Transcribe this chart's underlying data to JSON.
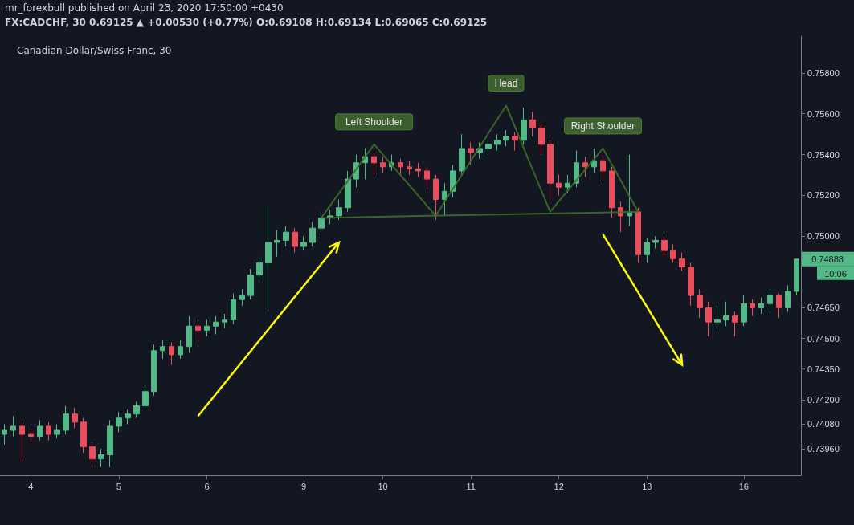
{
  "chart_data": {
    "type": "candlestick",
    "title": "Canadian Dollar/Swiss Franc, 30",
    "subtitle": "FX:CADCHF, 30 0.69125 ▲ +0.00530 (+0.77%) O:0.69108 H:0.69134 L:0.69065 C:0.69125",
    "annotations": [
      "mr_forexbull published on April 23, 2020 17:50:00 +0430",
      {
        "text": "Left Shoulder",
        "y": 0.7545
      },
      {
        "text": "Head",
        "y": 0.7564
      },
      {
        "text": "Right Shoulder",
        "y": 0.7543
      },
      "0.74888",
      "10:06"
    ],
    "categories": [
      null,
      null,
      null,
      "4",
      null,
      null,
      null,
      null,
      null,
      null,
      null,
      null,
      null,
      "5",
      null,
      null,
      null,
      null,
      null,
      null,
      null,
      null,
      null,
      "6",
      null,
      null,
      null,
      null,
      null,
      null,
      null,
      null,
      null,
      null,
      "9",
      null,
      null,
      null,
      null,
      null,
      null,
      null,
      null,
      "10",
      null,
      null,
      null,
      null,
      null,
      null,
      null,
      null,
      null,
      "11",
      null,
      null,
      null,
      null,
      null,
      null,
      null,
      null,
      null,
      "12",
      null,
      null,
      null,
      null,
      null,
      null,
      null,
      null,
      null,
      "13",
      null,
      null,
      null,
      null,
      null,
      null,
      null,
      null,
      null,
      null,
      "16",
      null,
      null,
      null,
      null,
      null,
      null
    ],
    "ohlc": [
      [
        0.7403,
        0.7408,
        0.7398,
        0.7405
      ],
      [
        0.7405,
        0.7412,
        0.7402,
        0.7407
      ],
      [
        0.7407,
        0.7409,
        0.739,
        0.7403
      ],
      [
        0.7403,
        0.7406,
        0.7399,
        0.7402
      ],
      [
        0.7402,
        0.741,
        0.74,
        0.7407
      ],
      [
        0.7407,
        0.7409,
        0.74,
        0.7403
      ],
      [
        0.7403,
        0.7408,
        0.7401,
        0.7405
      ],
      [
        0.7405,
        0.7417,
        0.7403,
        0.7413
      ],
      [
        0.7413,
        0.7416,
        0.7406,
        0.7409
      ],
      [
        0.7409,
        0.7411,
        0.7394,
        0.7397
      ],
      [
        0.7397,
        0.7399,
        0.7387,
        0.7391
      ],
      [
        0.7391,
        0.7396,
        0.7387,
        0.7393
      ],
      [
        0.7393,
        0.741,
        0.7387,
        0.7407
      ],
      [
        0.7407,
        0.7414,
        0.7404,
        0.7411
      ],
      [
        0.7411,
        0.7415,
        0.7408,
        0.7413
      ],
      [
        0.7413,
        0.7419,
        0.7411,
        0.7417
      ],
      [
        0.7417,
        0.7427,
        0.7415,
        0.7424
      ],
      [
        0.7424,
        0.7447,
        0.7422,
        0.7444
      ],
      [
        0.7444,
        0.7449,
        0.744,
        0.7446
      ],
      [
        0.7446,
        0.7448,
        0.7437,
        0.7442
      ],
      [
        0.7442,
        0.7449,
        0.744,
        0.7446
      ],
      [
        0.7446,
        0.7461,
        0.7443,
        0.7456
      ],
      [
        0.7456,
        0.7459,
        0.7448,
        0.7454
      ],
      [
        0.7454,
        0.7459,
        0.7451,
        0.7456
      ],
      [
        0.7456,
        0.7461,
        0.7452,
        0.7458
      ],
      [
        0.7458,
        0.7462,
        0.7455,
        0.7459
      ],
      [
        0.7459,
        0.7472,
        0.7457,
        0.7469
      ],
      [
        0.7469,
        0.7474,
        0.7466,
        0.7471
      ],
      [
        0.7471,
        0.7484,
        0.7469,
        0.7481
      ],
      [
        0.7481,
        0.749,
        0.7478,
        0.7487
      ],
      [
        0.7487,
        0.7515,
        0.7463,
        0.7497
      ],
      [
        0.7497,
        0.7503,
        0.749,
        0.7498
      ],
      [
        0.7498,
        0.7505,
        0.7495,
        0.7502
      ],
      [
        0.7502,
        0.7504,
        0.7492,
        0.7495
      ],
      [
        0.7495,
        0.75,
        0.7493,
        0.7497
      ],
      [
        0.7497,
        0.7507,
        0.7495,
        0.7504
      ],
      [
        0.7504,
        0.7512,
        0.7502,
        0.7509
      ],
      [
        0.7509,
        0.7513,
        0.7506,
        0.751
      ],
      [
        0.751,
        0.7518,
        0.7508,
        0.7514
      ],
      [
        0.7514,
        0.7532,
        0.7512,
        0.7528
      ],
      [
        0.7528,
        0.754,
        0.7524,
        0.7536
      ],
      [
        0.7536,
        0.7543,
        0.7528,
        0.7539
      ],
      [
        0.7539,
        0.7541,
        0.753,
        0.7536
      ],
      [
        0.7536,
        0.7539,
        0.7531,
        0.7534
      ],
      [
        0.7534,
        0.754,
        0.7532,
        0.7536
      ],
      [
        0.7536,
        0.7538,
        0.753,
        0.7534
      ],
      [
        0.7534,
        0.7537,
        0.753,
        0.7533
      ],
      [
        0.7533,
        0.7536,
        0.7529,
        0.7532
      ],
      [
        0.7532,
        0.7534,
        0.7523,
        0.7528
      ],
      [
        0.7528,
        0.753,
        0.7508,
        0.7518
      ],
      [
        0.7518,
        0.7526,
        0.751,
        0.7522
      ],
      [
        0.7522,
        0.7535,
        0.7519,
        0.7532
      ],
      [
        0.7532,
        0.755,
        0.753,
        0.7543
      ],
      [
        0.7543,
        0.7546,
        0.7535,
        0.7541
      ],
      [
        0.7541,
        0.7546,
        0.7538,
        0.7543
      ],
      [
        0.7543,
        0.7548,
        0.754,
        0.7545
      ],
      [
        0.7545,
        0.755,
        0.7542,
        0.7547
      ],
      [
        0.7547,
        0.7552,
        0.7544,
        0.7549
      ],
      [
        0.7549,
        0.7551,
        0.7542,
        0.7547
      ],
      [
        0.7547,
        0.7563,
        0.7545,
        0.7557
      ],
      [
        0.7557,
        0.7561,
        0.7549,
        0.7553
      ],
      [
        0.7553,
        0.7556,
        0.754,
        0.7545
      ],
      [
        0.7545,
        0.7547,
        0.7518,
        0.7526
      ],
      [
        0.7526,
        0.753,
        0.752,
        0.7524
      ],
      [
        0.7524,
        0.753,
        0.7521,
        0.7526
      ],
      [
        0.7526,
        0.7542,
        0.7524,
        0.7536
      ],
      [
        0.7536,
        0.7539,
        0.7529,
        0.7534
      ],
      [
        0.7534,
        0.7543,
        0.7531,
        0.7537
      ],
      [
        0.7537,
        0.754,
        0.7527,
        0.7532
      ],
      [
        0.7532,
        0.7534,
        0.7509,
        0.7514
      ],
      [
        0.7514,
        0.7517,
        0.7502,
        0.751
      ],
      [
        0.751,
        0.754,
        0.7505,
        0.7512
      ],
      [
        0.7512,
        0.7514,
        0.7487,
        0.7491
      ],
      [
        0.7491,
        0.7499,
        0.7487,
        0.7497
      ],
      [
        0.7497,
        0.75,
        0.7494,
        0.7498
      ],
      [
        0.7498,
        0.75,
        0.749,
        0.7493
      ],
      [
        0.7493,
        0.7496,
        0.7487,
        0.7489
      ],
      [
        0.7489,
        0.7492,
        0.7483,
        0.7485
      ],
      [
        0.7485,
        0.7487,
        0.7466,
        0.7471
      ],
      [
        0.7471,
        0.7474,
        0.746,
        0.7465
      ],
      [
        0.7465,
        0.7468,
        0.7451,
        0.7458
      ],
      [
        0.7458,
        0.7466,
        0.7453,
        0.7459
      ],
      [
        0.7459,
        0.7468,
        0.7456,
        0.7461
      ],
      [
        0.7461,
        0.7463,
        0.7451,
        0.7458
      ],
      [
        0.7458,
        0.7471,
        0.7456,
        0.7467
      ],
      [
        0.7467,
        0.7469,
        0.7461,
        0.7465
      ],
      [
        0.7465,
        0.747,
        0.7462,
        0.7467
      ],
      [
        0.7467,
        0.7473,
        0.7464,
        0.7471
      ],
      [
        0.7471,
        0.7472,
        0.746,
        0.7465
      ],
      [
        0.7465,
        0.7476,
        0.7463,
        0.7473
      ],
      [
        0.7473,
        0.74888,
        0.7471,
        0.74888
      ]
    ],
    "colors": [
      "#53b987",
      "#53b987",
      "#eb4d5c",
      "#eb4d5c",
      "#53b987",
      "#eb4d5c",
      "#53b987",
      "#53b987",
      "#eb4d5c",
      "#eb4d5c",
      "#eb4d5c",
      "#53b987",
      "#53b987",
      "#53b987",
      "#53b987",
      "#53b987",
      "#53b987",
      "#53b987",
      "#53b987",
      "#eb4d5c",
      "#53b987",
      "#53b987",
      "#eb4d5c",
      "#53b987",
      "#53b987",
      "#53b987",
      "#53b987",
      "#53b987",
      "#53b987",
      "#53b987",
      "#53b987",
      "#53b987",
      "#53b987",
      "#eb4d5c",
      "#53b987",
      "#53b987",
      "#53b987",
      "#53b987",
      "#53b987",
      "#53b987",
      "#53b987",
      "#53b987",
      "#eb4d5c",
      "#eb4d5c",
      "#53b987",
      "#eb4d5c",
      "#eb4d5c",
      "#eb4d5c",
      "#eb4d5c",
      "#eb4d5c",
      "#53b987",
      "#53b987",
      "#53b987",
      "#eb4d5c",
      "#53b987",
      "#53b987",
      "#53b987",
      "#53b987",
      "#eb4d5c",
      "#53b987",
      "#eb4d5c",
      "#eb4d5c",
      "#eb4d5c",
      "#eb4d5c",
      "#53b987",
      "#53b987",
      "#eb4d5c",
      "#53b987",
      "#eb4d5c",
      "#eb4d5c",
      "#eb4d5c",
      "#53b987",
      "#eb4d5c",
      "#53b987",
      "#53b987",
      "#eb4d5c",
      "#eb4d5c",
      "#eb4d5c",
      "#eb4d5c",
      "#eb4d5c",
      "#eb4d5c",
      "#53b987",
      "#53b987",
      "#eb4d5c",
      "#53b987",
      "#eb4d5c",
      "#53b987",
      "#53b987",
      "#eb4d5c",
      "#53b987",
      "#53b987"
    ],
    "series": [
      {
        "type": "line",
        "color": "#3f6b2e",
        "values": [
          null,
          null,
          null,
          null,
          null,
          null,
          null,
          null,
          null,
          null,
          null,
          null,
          null,
          null,
          null,
          null,
          null,
          null,
          null,
          null,
          null,
          null,
          null,
          null,
          null,
          null,
          null,
          null,
          null,
          null,
          null,
          null,
          null,
          null,
          null,
          null,
          0.7509,
          null,
          null,
          null,
          null,
          null,
          0.7545,
          null,
          null,
          null,
          null,
          null,
          null,
          0.751,
          null,
          null,
          null,
          null,
          null,
          null,
          null,
          0.7564,
          null,
          null,
          null,
          null,
          0.7512,
          null,
          null,
          null,
          null,
          null,
          0.7543,
          null,
          null,
          null,
          0.7512,
          null,
          null,
          null,
          null,
          null,
          null,
          null,
          null,
          null,
          null,
          null,
          null,
          null,
          null,
          null,
          null,
          null,
          null
        ]
      },
      {
        "type": "line",
        "color": "#3f6b2e",
        "values": [
          null,
          null,
          null,
          null,
          null,
          null,
          null,
          null,
          null,
          null,
          null,
          null,
          null,
          null,
          null,
          null,
          null,
          null,
          null,
          null,
          null,
          null,
          null,
          null,
          null,
          null,
          null,
          null,
          null,
          null,
          null,
          null,
          null,
          null,
          null,
          null,
          0.7509,
          null,
          null,
          null,
          null,
          null,
          null,
          null,
          null,
          null,
          null,
          null,
          null,
          null,
          null,
          null,
          null,
          null,
          null,
          null,
          null,
          null,
          null,
          null,
          null,
          null,
          null,
          null,
          null,
          null,
          null,
          null,
          null,
          null,
          null,
          null,
          0.7512,
          null,
          null,
          null,
          null,
          null,
          null,
          null,
          null,
          null,
          null,
          null,
          null,
          null,
          null,
          null,
          null,
          null,
          null
        ]
      }
    ],
    "marker": "none",
    "ylim": [
      0.7383,
      0.7598
    ],
    "yticks": [
      {
        "value": 0.758,
        "label": "0.75800"
      },
      {
        "value": 0.756,
        "label": "0.75600"
      },
      {
        "value": 0.754,
        "label": "0.75400"
      },
      {
        "value": 0.752,
        "label": "0.75200"
      },
      {
        "value": 0.75,
        "label": "0.75000"
      },
      {
        "value": 0.7465,
        "label": "0.74650"
      },
      {
        "value": 0.745,
        "label": "0.74500"
      },
      {
        "value": 0.7435,
        "label": "0.74350"
      },
      {
        "value": 0.742,
        "label": "0.74200"
      },
      {
        "value": 0.7408,
        "label": "0.74080"
      },
      {
        "value": 0.7396,
        "label": "0.73960"
      }
    ],
    "grid": false
  }
}
